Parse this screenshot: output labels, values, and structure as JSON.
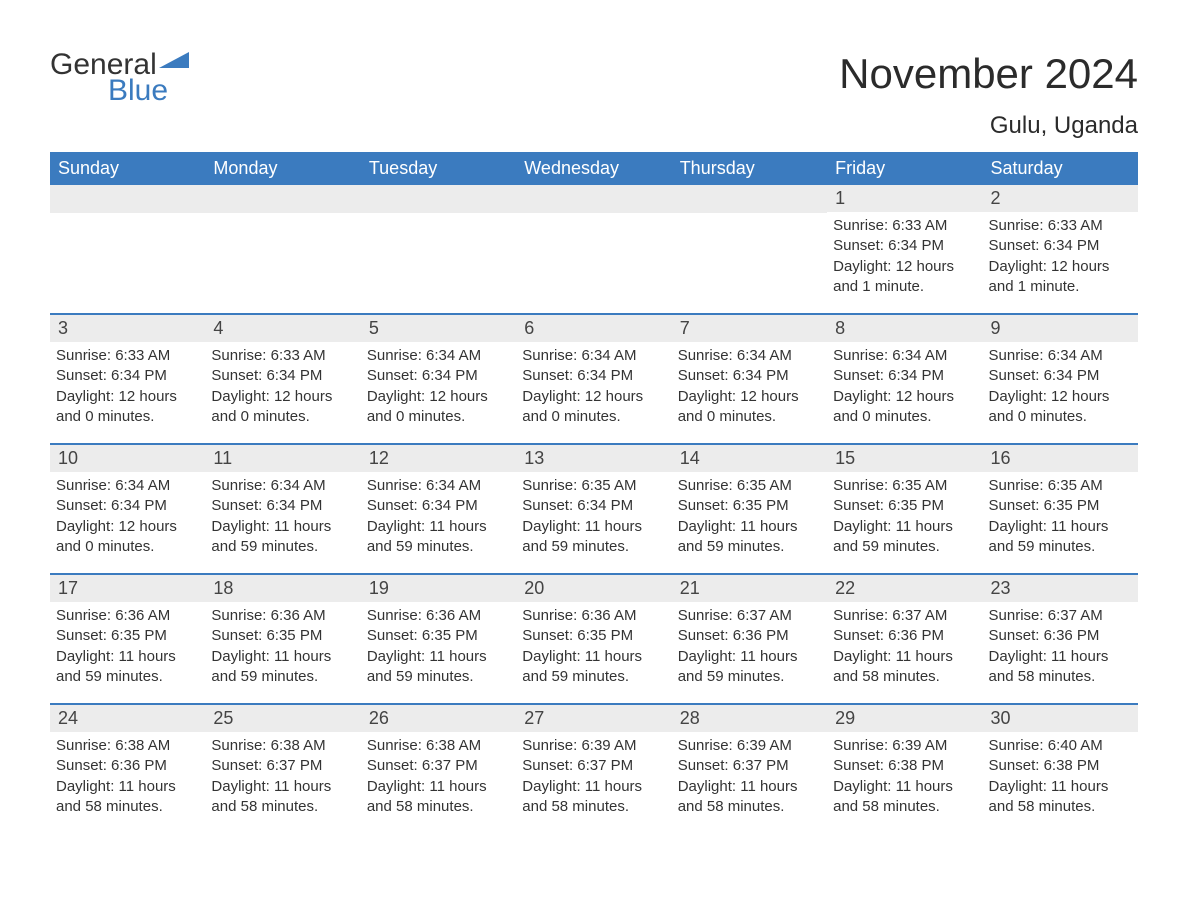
{
  "brand": {
    "word1": "General",
    "word2": "Blue"
  },
  "title": "November 2024",
  "location": "Gulu, Uganda",
  "colors": {
    "header_bg": "#3b7bbf",
    "daynum_bg": "#ececec",
    "week_border": "#3b7bbf",
    "text": "#333333",
    "brand_blue": "#3b7bbf"
  },
  "columns": [
    "Sunday",
    "Monday",
    "Tuesday",
    "Wednesday",
    "Thursday",
    "Friday",
    "Saturday"
  ],
  "weeks": [
    [
      {
        "n": "",
        "sunrise": "",
        "sunset": "",
        "daylight": ""
      },
      {
        "n": "",
        "sunrise": "",
        "sunset": "",
        "daylight": ""
      },
      {
        "n": "",
        "sunrise": "",
        "sunset": "",
        "daylight": ""
      },
      {
        "n": "",
        "sunrise": "",
        "sunset": "",
        "daylight": ""
      },
      {
        "n": "",
        "sunrise": "",
        "sunset": "",
        "daylight": ""
      },
      {
        "n": "1",
        "sunrise": "Sunrise: 6:33 AM",
        "sunset": "Sunset: 6:34 PM",
        "daylight": "Daylight: 12 hours and 1 minute."
      },
      {
        "n": "2",
        "sunrise": "Sunrise: 6:33 AM",
        "sunset": "Sunset: 6:34 PM",
        "daylight": "Daylight: 12 hours and 1 minute."
      }
    ],
    [
      {
        "n": "3",
        "sunrise": "Sunrise: 6:33 AM",
        "sunset": "Sunset: 6:34 PM",
        "daylight": "Daylight: 12 hours and 0 minutes."
      },
      {
        "n": "4",
        "sunrise": "Sunrise: 6:33 AM",
        "sunset": "Sunset: 6:34 PM",
        "daylight": "Daylight: 12 hours and 0 minutes."
      },
      {
        "n": "5",
        "sunrise": "Sunrise: 6:34 AM",
        "sunset": "Sunset: 6:34 PM",
        "daylight": "Daylight: 12 hours and 0 minutes."
      },
      {
        "n": "6",
        "sunrise": "Sunrise: 6:34 AM",
        "sunset": "Sunset: 6:34 PM",
        "daylight": "Daylight: 12 hours and 0 minutes."
      },
      {
        "n": "7",
        "sunrise": "Sunrise: 6:34 AM",
        "sunset": "Sunset: 6:34 PM",
        "daylight": "Daylight: 12 hours and 0 minutes."
      },
      {
        "n": "8",
        "sunrise": "Sunrise: 6:34 AM",
        "sunset": "Sunset: 6:34 PM",
        "daylight": "Daylight: 12 hours and 0 minutes."
      },
      {
        "n": "9",
        "sunrise": "Sunrise: 6:34 AM",
        "sunset": "Sunset: 6:34 PM",
        "daylight": "Daylight: 12 hours and 0 minutes."
      }
    ],
    [
      {
        "n": "10",
        "sunrise": "Sunrise: 6:34 AM",
        "sunset": "Sunset: 6:34 PM",
        "daylight": "Daylight: 12 hours and 0 minutes."
      },
      {
        "n": "11",
        "sunrise": "Sunrise: 6:34 AM",
        "sunset": "Sunset: 6:34 PM",
        "daylight": "Daylight: 11 hours and 59 minutes."
      },
      {
        "n": "12",
        "sunrise": "Sunrise: 6:34 AM",
        "sunset": "Sunset: 6:34 PM",
        "daylight": "Daylight: 11 hours and 59 minutes."
      },
      {
        "n": "13",
        "sunrise": "Sunrise: 6:35 AM",
        "sunset": "Sunset: 6:34 PM",
        "daylight": "Daylight: 11 hours and 59 minutes."
      },
      {
        "n": "14",
        "sunrise": "Sunrise: 6:35 AM",
        "sunset": "Sunset: 6:35 PM",
        "daylight": "Daylight: 11 hours and 59 minutes."
      },
      {
        "n": "15",
        "sunrise": "Sunrise: 6:35 AM",
        "sunset": "Sunset: 6:35 PM",
        "daylight": "Daylight: 11 hours and 59 minutes."
      },
      {
        "n": "16",
        "sunrise": "Sunrise: 6:35 AM",
        "sunset": "Sunset: 6:35 PM",
        "daylight": "Daylight: 11 hours and 59 minutes."
      }
    ],
    [
      {
        "n": "17",
        "sunrise": "Sunrise: 6:36 AM",
        "sunset": "Sunset: 6:35 PM",
        "daylight": "Daylight: 11 hours and 59 minutes."
      },
      {
        "n": "18",
        "sunrise": "Sunrise: 6:36 AM",
        "sunset": "Sunset: 6:35 PM",
        "daylight": "Daylight: 11 hours and 59 minutes."
      },
      {
        "n": "19",
        "sunrise": "Sunrise: 6:36 AM",
        "sunset": "Sunset: 6:35 PM",
        "daylight": "Daylight: 11 hours and 59 minutes."
      },
      {
        "n": "20",
        "sunrise": "Sunrise: 6:36 AM",
        "sunset": "Sunset: 6:35 PM",
        "daylight": "Daylight: 11 hours and 59 minutes."
      },
      {
        "n": "21",
        "sunrise": "Sunrise: 6:37 AM",
        "sunset": "Sunset: 6:36 PM",
        "daylight": "Daylight: 11 hours and 59 minutes."
      },
      {
        "n": "22",
        "sunrise": "Sunrise: 6:37 AM",
        "sunset": "Sunset: 6:36 PM",
        "daylight": "Daylight: 11 hours and 58 minutes."
      },
      {
        "n": "23",
        "sunrise": "Sunrise: 6:37 AM",
        "sunset": "Sunset: 6:36 PM",
        "daylight": "Daylight: 11 hours and 58 minutes."
      }
    ],
    [
      {
        "n": "24",
        "sunrise": "Sunrise: 6:38 AM",
        "sunset": "Sunset: 6:36 PM",
        "daylight": "Daylight: 11 hours and 58 minutes."
      },
      {
        "n": "25",
        "sunrise": "Sunrise: 6:38 AM",
        "sunset": "Sunset: 6:37 PM",
        "daylight": "Daylight: 11 hours and 58 minutes."
      },
      {
        "n": "26",
        "sunrise": "Sunrise: 6:38 AM",
        "sunset": "Sunset: 6:37 PM",
        "daylight": "Daylight: 11 hours and 58 minutes."
      },
      {
        "n": "27",
        "sunrise": "Sunrise: 6:39 AM",
        "sunset": "Sunset: 6:37 PM",
        "daylight": "Daylight: 11 hours and 58 minutes."
      },
      {
        "n": "28",
        "sunrise": "Sunrise: 6:39 AM",
        "sunset": "Sunset: 6:37 PM",
        "daylight": "Daylight: 11 hours and 58 minutes."
      },
      {
        "n": "29",
        "sunrise": "Sunrise: 6:39 AM",
        "sunset": "Sunset: 6:38 PM",
        "daylight": "Daylight: 11 hours and 58 minutes."
      },
      {
        "n": "30",
        "sunrise": "Sunrise: 6:40 AM",
        "sunset": "Sunset: 6:38 PM",
        "daylight": "Daylight: 11 hours and 58 minutes."
      }
    ]
  ]
}
